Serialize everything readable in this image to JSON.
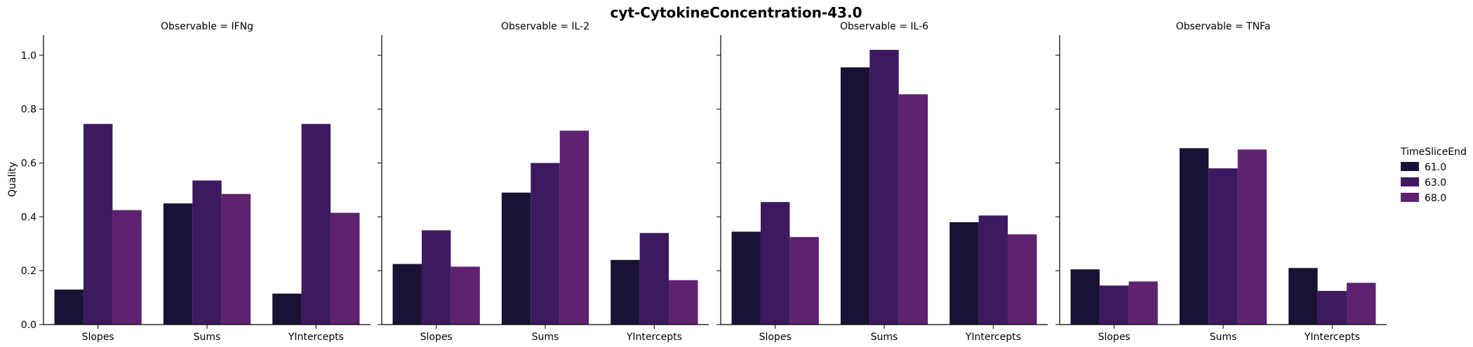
{
  "chart_data": {
    "type": "bar",
    "title": "cyt-CytokineConcentration-43.0",
    "ylabel": "Quality",
    "xlabel": "",
    "ylim": [
      0,
      1.075
    ],
    "yticks": [
      "0.0",
      "0.2",
      "0.4",
      "0.6",
      "0.8",
      "1.0"
    ],
    "ytick_values": [
      0,
      0.2,
      0.4,
      0.6,
      0.8,
      1.0
    ],
    "categories": [
      "Slopes",
      "Sums",
      "YIntercepts"
    ],
    "grid": false,
    "legend": {
      "title": "TimeSliceEnd",
      "placement": "right",
      "entries": [
        "61.0",
        "63.0",
        "68.0"
      ]
    },
    "colors": [
      "#1a1234",
      "#3d1a60",
      "#5f2270"
    ],
    "panels": [
      {
        "title": "Observable = IFNg",
        "series": [
          {
            "name": "61.0",
            "values": [
              0.13,
              0.45,
              0.115
            ]
          },
          {
            "name": "63.0",
            "values": [
              0.745,
              0.535,
              0.745
            ]
          },
          {
            "name": "68.0",
            "values": [
              0.425,
              0.485,
              0.415
            ]
          }
        ]
      },
      {
        "title": "Observable = IL-2",
        "series": [
          {
            "name": "61.0",
            "values": [
              0.225,
              0.49,
              0.24
            ]
          },
          {
            "name": "63.0",
            "values": [
              0.35,
              0.6,
              0.34
            ]
          },
          {
            "name": "68.0",
            "values": [
              0.215,
              0.72,
              0.165
            ]
          }
        ]
      },
      {
        "title": "Observable = IL-6",
        "series": [
          {
            "name": "61.0",
            "values": [
              0.345,
              0.955,
              0.38
            ]
          },
          {
            "name": "63.0",
            "values": [
              0.455,
              1.02,
              0.405
            ]
          },
          {
            "name": "68.0",
            "values": [
              0.325,
              0.855,
              0.335
            ]
          }
        ]
      },
      {
        "title": "Observable = TNFa",
        "series": [
          {
            "name": "61.0",
            "values": [
              0.205,
              0.655,
              0.21
            ]
          },
          {
            "name": "63.0",
            "values": [
              0.145,
              0.58,
              0.125
            ]
          },
          {
            "name": "68.0",
            "values": [
              0.16,
              0.65,
              0.155
            ]
          }
        ]
      }
    ]
  }
}
